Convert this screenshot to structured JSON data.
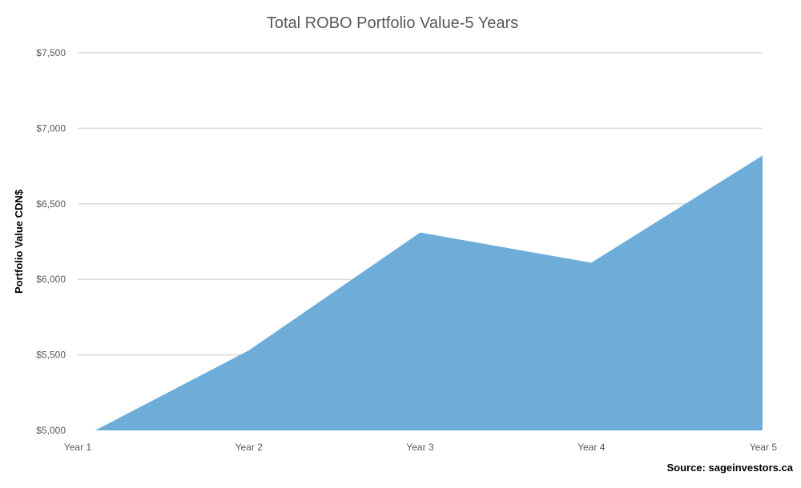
{
  "chart_data": {
    "type": "area",
    "title": "Total ROBO Portfolio Value-5 Years",
    "xlabel": "",
    "ylabel": "Portfolio Value CDN$",
    "categories": [
      "Year 1",
      "Year 2",
      "Year 3",
      "Year 4",
      "Year 5"
    ],
    "y_tick_labels": [
      "$5,000",
      "$5,500",
      "$6,000",
      "$6,500",
      "$7,000",
      "$7,500"
    ],
    "ylim": [
      5000,
      7500
    ],
    "y_ticks": [
      5000,
      5500,
      6000,
      6500,
      7000,
      7500
    ],
    "series": [
      {
        "values": [
          4940,
          5530,
          6310,
          6110,
          6820
        ]
      }
    ],
    "grid": true,
    "legend": "none",
    "area_color": "#6fadd9",
    "grid_color": "#d9d9d9",
    "source": "Source:  sageinvestors.ca"
  }
}
